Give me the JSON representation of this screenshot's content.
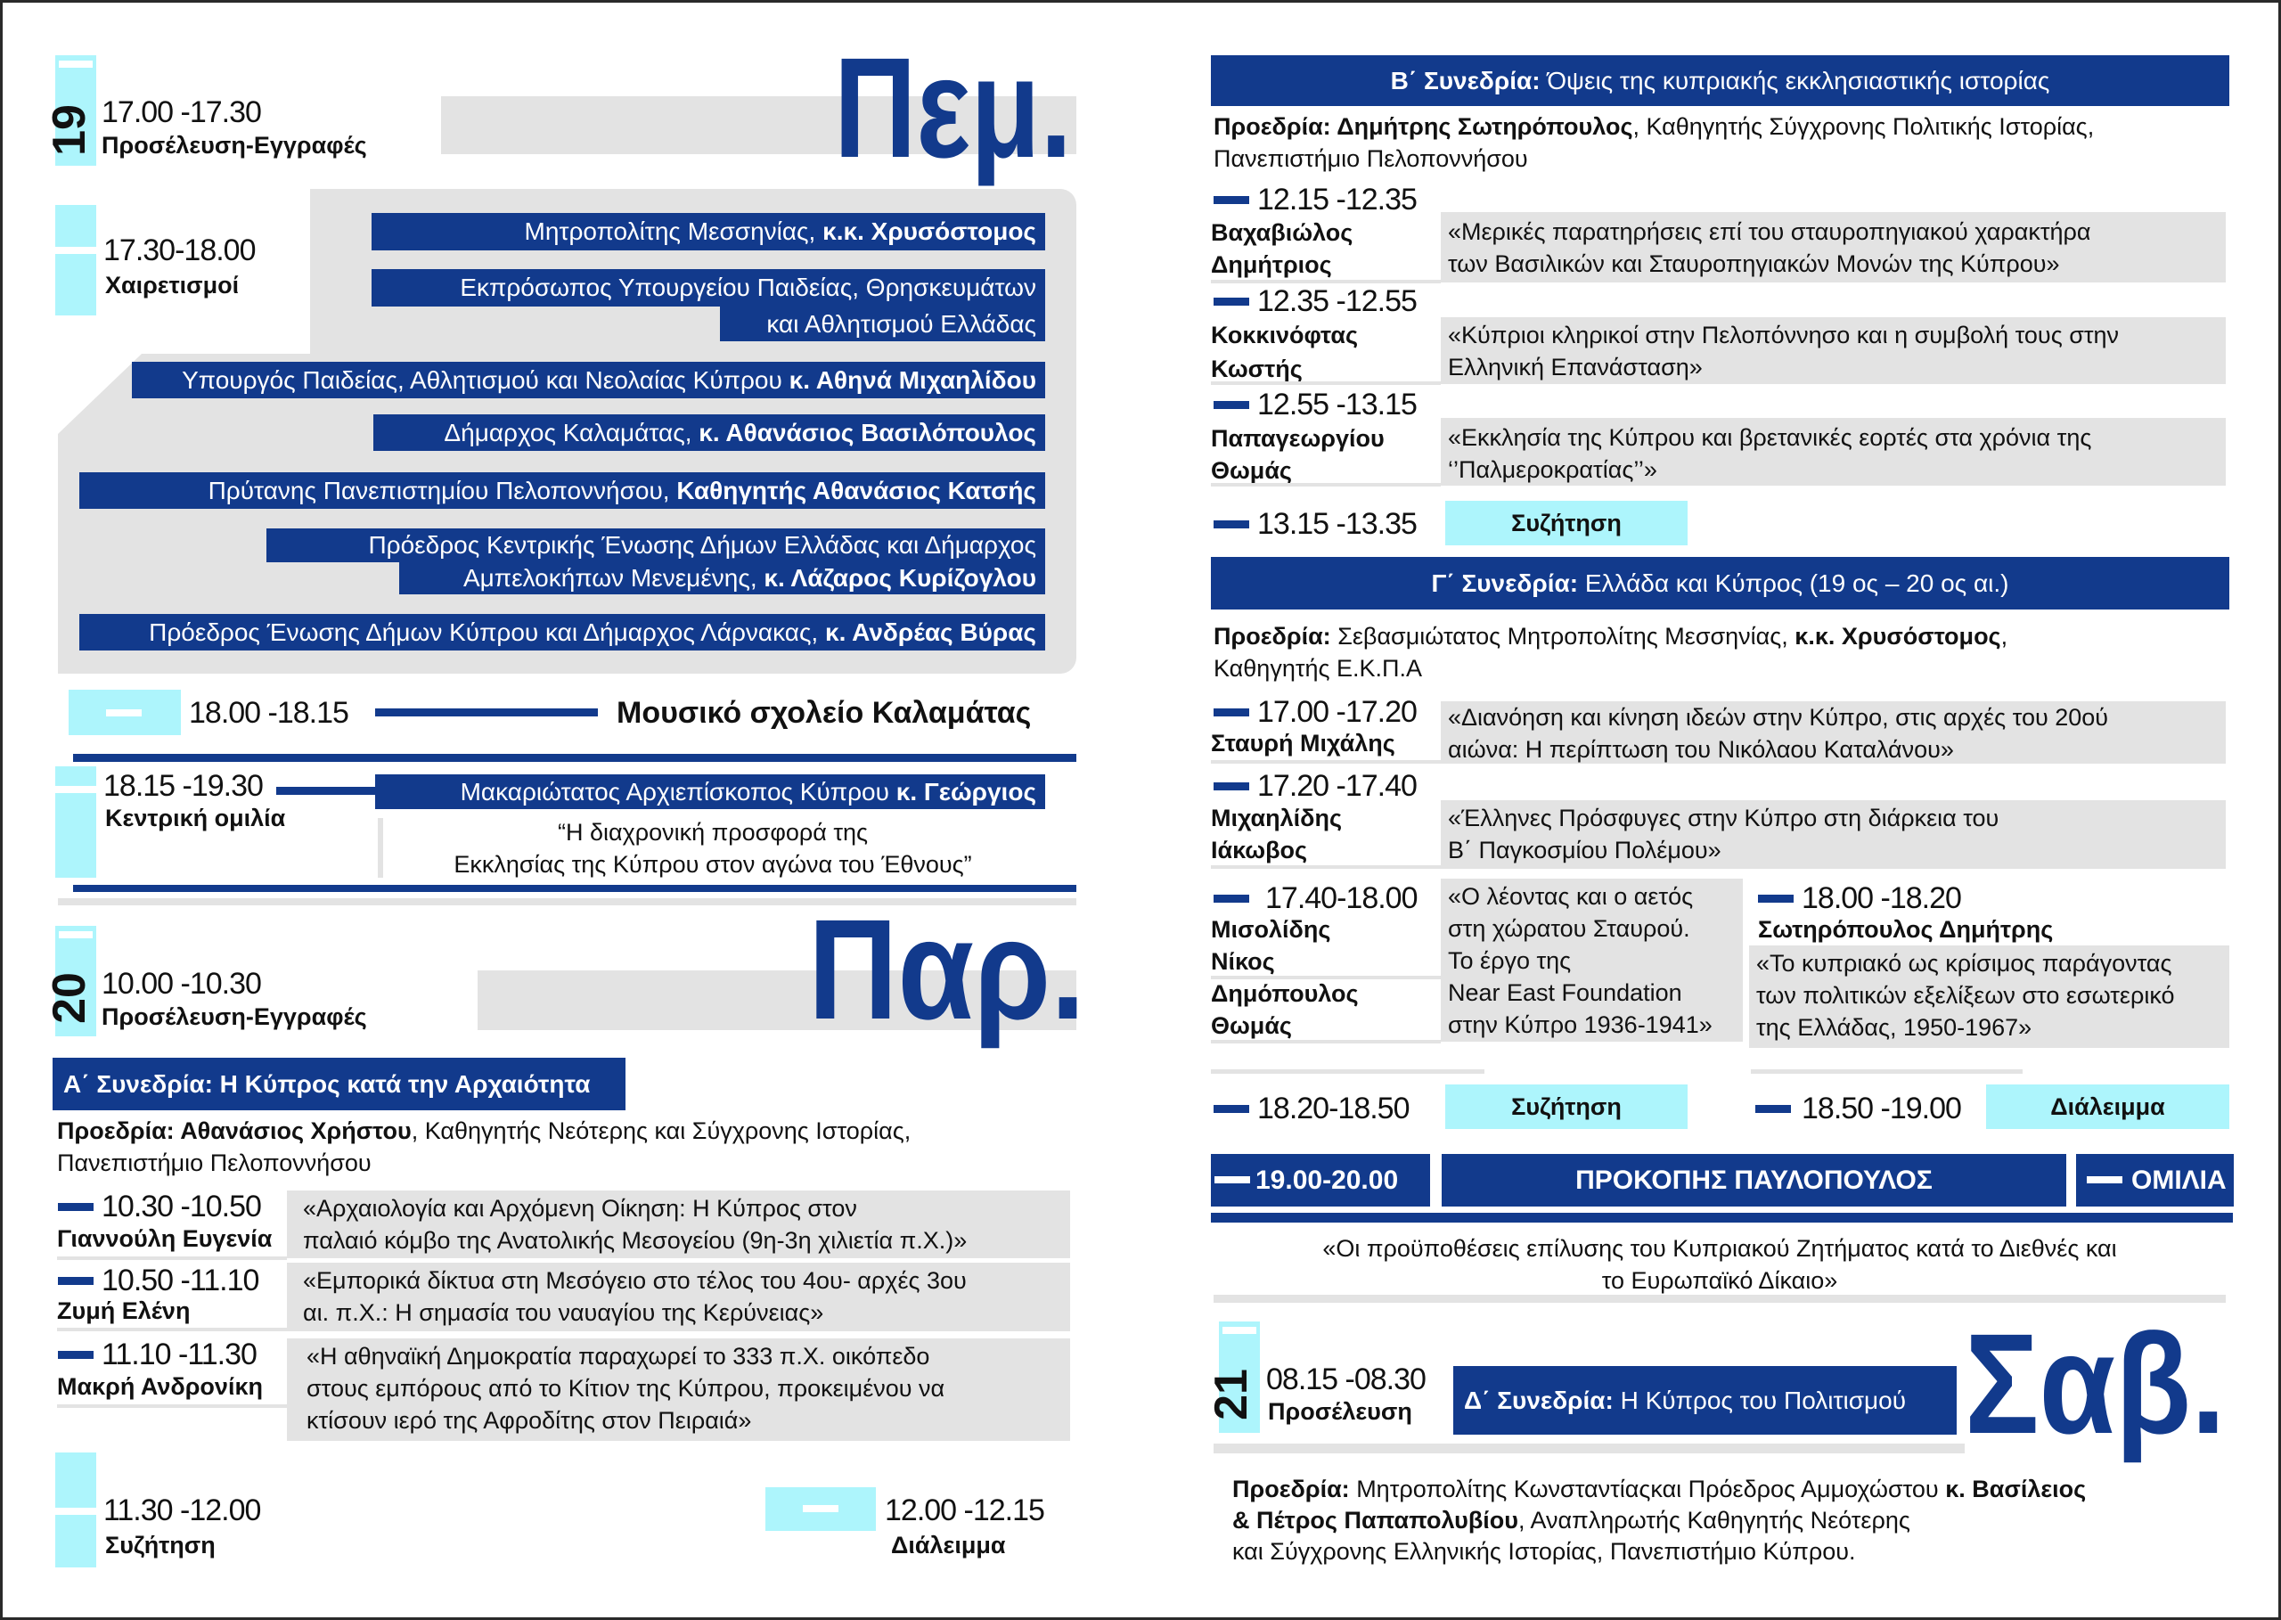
{
  "colors": {
    "navy": "#123a8c",
    "cyan": "#adf5fc",
    "gray": "#e3e3e3"
  },
  "day19": {
    "number": "19",
    "weekday": "Πεμ.",
    "arrival": {
      "time": "17.00 -17.30",
      "label": "Προσέλευση-Εγγραφές"
    },
    "greetings": {
      "time": "17.30-18.00",
      "label": "Χαιρετισμοί",
      "speakers": [
        {
          "l1": "Μητροπολίτης Μεσσηνίας, ",
          "b1": "κ.κ. Χρυσόστομος"
        },
        {
          "l1": "Εκπρόσωπος Υπουργείου Παιδείας, Θρησκευμάτων",
          "l2": "και Αθλητισμού Ελλάδας"
        },
        {
          "l1": "Υπουργός Παιδείας, Αθλητισμού και Νεολαίας Κύπρου ",
          "b1": "κ. Αθηνά Μιχαηλίδου"
        },
        {
          "l1": "Δήμαρχος Καλαμάτας, ",
          "b1": "κ. Αθανάσιος Βασιλόπουλος"
        },
        {
          "l1": "Πρύτανης Πανεπιστημίου Πελοποννήσου, ",
          "b1": "Καθηγητής Αθανάσιος Κατσής"
        },
        {
          "l1": "Πρόεδρος Κεντρικής Ένωσης Δήμων Ελλάδας και Δήμαρχος",
          "l2": "Αμπελοκήπων Μενεμένης, ",
          "b2": "κ. Λάζαρος Κυρίζογλου"
        },
        {
          "l1": "Πρόεδρος Ένωσης Δήμων Κύπρου και Δήμαρχος Λάρνακας, ",
          "b1": "κ. Ανδρέας Βύρας"
        }
      ]
    },
    "music": {
      "time": "18.00 -18.15",
      "label": "Μουσικό σχολείο Καλαμάτας"
    },
    "keynote": {
      "time": "18.15 -19.30",
      "label": "Κεντρική ομιλία",
      "speaker_title": "Μακαριώτατος Αρχιεπίσκοπος Κύπρου ",
      "speaker_name": "κ. Γεώργιος",
      "quote": [
        "“Η διαχρονική προσφορά της",
        "Εκκλησίας της Κύπρου στον αγώνα του Έθνους”"
      ]
    }
  },
  "day20": {
    "number": "20",
    "weekday": "Παρ.",
    "arrival": {
      "time": "10.00 -10.30",
      "label": "Προσέλευση-Εγγραφές"
    },
    "session_a": {
      "title": "Α΄ Συνεδρία: Η Κύπρος κατά την Αρχαιότητα",
      "chair_label": "Προεδρία: ",
      "chair_name": "Αθανάσιος Χρήστου",
      "chair_rest": ", Καθηγητής Νεότερης και Σύγχρονης Ιστορίας,",
      "chair_line2": "Πανεπιστήμιο Πελοποννήσου",
      "talks": [
        {
          "time": "10.30 -10.50",
          "speaker": "Γιαννούλη Ευγενία",
          "title": [
            "«Αρχαιολογία και Αρχόμενη Οίκηση: Η Κύπρος στον",
            "παλαιό κόμβο της Ανατολικής Μεσογείου (9η-3η χιλιετία π.Χ.)»"
          ]
        },
        {
          "time": "10.50 -11.10",
          "speaker": "Ζυμή Ελένη",
          "title": [
            "«Εμπορικά δίκτυα στη Μεσόγειο στο τέλος του 4ου- αρχές 3ου",
            " αι. π.Χ.: Η σημασία του ναυαγίου της Κερύνειας»"
          ]
        },
        {
          "time": "11.10 -11.30",
          "speaker": "Μακρή Ανδρονίκη",
          "title": [
            "«Η αθηναϊκή Δημοκρατία παραχωρεί το 333 π.Χ. οικόπεδο",
            "στους εμπόρους από το Κίτιον της Κύπρου, προκειμένου να",
            "κτίσουν ιερό της Αφροδίτης στον Πειραιά»"
          ]
        }
      ]
    },
    "discussion": {
      "time": "11.30 -12.00",
      "label": "Συζήτηση"
    },
    "break": {
      "time": "12.00 -12.15",
      "label": "Διάλειμμα"
    },
    "session_b": {
      "title_bold": "Β΄ Συνεδρία: ",
      "title": "Όψεις της κυπριακής εκκλησιαστικής ιστορίας",
      "chair_label": "Προεδρία: ",
      "chair_name": "Δημήτρης Σωτηρόπουλος",
      "chair_rest": ", Καθηγητής Σύγχρονης Πολιτικής Ιστορίας,",
      "chair_line2": "Πανεπιστήμιο Πελοποννήσου",
      "talks": [
        {
          "time": "12.15 -12.35",
          "speaker": [
            "Βαχαβιώλος",
            "Δημήτριος"
          ],
          "title": [
            "«Μερικές παρατηρήσεις επί του σταυροπηγιακού χαρακτήρα",
            "των Βασιλικών και Σταυροπηγιακών Μονών της Κύπρου»"
          ]
        },
        {
          "time": "12.35 -12.55",
          "speaker": [
            "Κοκκινόφτας",
            "Κωστής"
          ],
          "title": [
            "«Κύπριοι κληρικοί στην Πελοπόννησο και η συμβολή τους στην",
            " Ελληνική Επανάσταση»"
          ]
        },
        {
          "time": "12.55 -13.15",
          "speaker": [
            "Παπαγεωργίου",
            "Θωμάς"
          ],
          "title": [
            "«Εκκλησία της Κύπρου και βρετανικές εορτές στα χρόνια της",
            "‘’Παλμεροκρατίας’’»"
          ]
        }
      ],
      "discussion": {
        "time": "13.15 -13.35",
        "label": "Συζήτηση"
      }
    },
    "session_c": {
      "title_bold": "Γ΄ Συνεδρία: ",
      "title": "Ελλάδα και Κύπρος (19 ος – 20 ος αι.)",
      "chair_label": "Προεδρία: ",
      "chair_rest": "Σεβασμιώτατος Μητροπολίτης Μεσσηνίας, ",
      "chair_name": "κ.κ. Χρυσόστομος",
      "chair_comma": ",",
      "chair_line2": "Καθηγητής Ε.Κ.Π.Α",
      "talks": [
        {
          "time": "17.00 -17.20",
          "speaker": [
            "Σταυρή  Μιχάλης"
          ],
          "title": [
            "«Διανόηση και κίνηση ιδεών στην Κύπρο, στις αρχές του 20ού",
            "αιώνα: Η περίπτωση του Νικόλαου Καταλάνου»"
          ]
        },
        {
          "time": "17.20 -17.40",
          "speaker": [
            "Μιχαηλίδης",
            "Ιάκωβος"
          ],
          "title": [
            "«Έλληνες Πρόσφυγες στην Κύπρο στη διάρκεια του",
            "Β΄ Παγκοσμίου Πολέμου»"
          ]
        },
        {
          "time": "17.40-18.00",
          "speaker": [
            "Μισολίδης",
            "Νίκος",
            "Δημόπουλος",
            "Θωμάς"
          ],
          "title": [
            "«Ο λέοντας και ο αετός",
            "στη χώρατου Σταυρού.",
            "Το έργο της",
            "Near East Foundation",
            "στην Κύπρο 1936-1941»"
          ]
        },
        {
          "time": "18.00 -18.20",
          "speaker": [
            "Σωτηρόπουλος Δημήτρης"
          ],
          "title": [
            "«Το κυπριακό ως κρίσιμος παράγοντας",
            "των πολιτικών εξελίξεων στο εσωτερικό",
            "της Ελλάδας, 1950-1967»"
          ]
        }
      ],
      "discussion": {
        "time": "18.20-18.50",
        "label": "Συζήτηση"
      },
      "break": {
        "time": "18.50 -19.00",
        "label": "Διάλειμμα"
      }
    },
    "lecture": {
      "time": "19.00-20.00",
      "speaker": "ΠΡΟΚΟΠΗΣ ΠΑΥΛΟΠΟΥΛΟΣ",
      "label": "ΟΜΙΛΙΑ",
      "quote": [
        "«Οι προϋποθέσεις επίλυσης του Κυπριακού Ζητήματος κατά το Διεθνές και",
        "το Ευρωπαϊκό Δίκαιο»"
      ]
    }
  },
  "day21": {
    "number": "21",
    "weekday": "Σαβ.",
    "arrival": {
      "time": "08.15 -08.30",
      "label": "Προσέλευση"
    },
    "session_d": {
      "title_bold": "Δ΄ Συνεδρία: ",
      "title": "Η Κύπρος του Πολιτισμού",
      "chair_label": "Προεδρία: ",
      "chair_rest": "Μητροπολίτης Κωνσταντίαςκαι Πρόεδρος Αμμοχώστου ",
      "chair_name": "κ. Βασίλειος",
      "chair_line2_bold": "& Πέτρος Παπαπολυβίου",
      "chair_line2": ", Αναπληρωτής Καθηγητής Νεότερης",
      "chair_line3": "και Σύγχρονης Ελληνικής Ιστορίας, Πανεπιστήμιο Κύπρου."
    }
  }
}
